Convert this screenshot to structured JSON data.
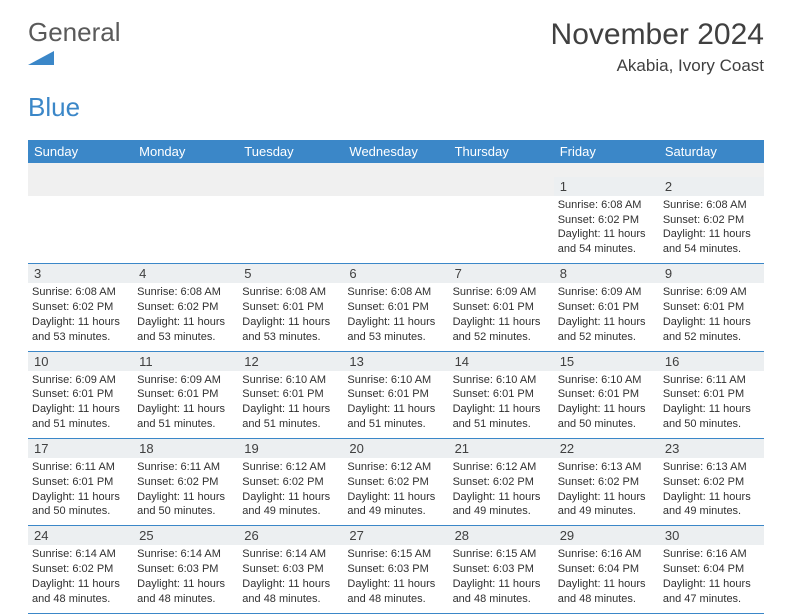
{
  "brand": {
    "word1": "General",
    "word2": "Blue",
    "accent_color": "#3b87c8"
  },
  "title": "November 2024",
  "location": "Akabia, Ivory Coast",
  "columns": [
    "Sunday",
    "Monday",
    "Tuesday",
    "Wednesday",
    "Thursday",
    "Friday",
    "Saturday"
  ],
  "colors": {
    "header_bg": "#3b87c8",
    "header_text": "#ffffff",
    "daynum_bg": "#eceff1",
    "border": "#3b87c8",
    "text": "#303030",
    "background": "#ffffff"
  },
  "weeks": [
    [
      {
        "n": "",
        "sr": "",
        "ss": "",
        "dl": ""
      },
      {
        "n": "",
        "sr": "",
        "ss": "",
        "dl": ""
      },
      {
        "n": "",
        "sr": "",
        "ss": "",
        "dl": ""
      },
      {
        "n": "",
        "sr": "",
        "ss": "",
        "dl": ""
      },
      {
        "n": "",
        "sr": "",
        "ss": "",
        "dl": ""
      },
      {
        "n": "1",
        "sr": "Sunrise: 6:08 AM",
        "ss": "Sunset: 6:02 PM",
        "dl": "Daylight: 11 hours and 54 minutes."
      },
      {
        "n": "2",
        "sr": "Sunrise: 6:08 AM",
        "ss": "Sunset: 6:02 PM",
        "dl": "Daylight: 11 hours and 54 minutes."
      }
    ],
    [
      {
        "n": "3",
        "sr": "Sunrise: 6:08 AM",
        "ss": "Sunset: 6:02 PM",
        "dl": "Daylight: 11 hours and 53 minutes."
      },
      {
        "n": "4",
        "sr": "Sunrise: 6:08 AM",
        "ss": "Sunset: 6:02 PM",
        "dl": "Daylight: 11 hours and 53 minutes."
      },
      {
        "n": "5",
        "sr": "Sunrise: 6:08 AM",
        "ss": "Sunset: 6:01 PM",
        "dl": "Daylight: 11 hours and 53 minutes."
      },
      {
        "n": "6",
        "sr": "Sunrise: 6:08 AM",
        "ss": "Sunset: 6:01 PM",
        "dl": "Daylight: 11 hours and 53 minutes."
      },
      {
        "n": "7",
        "sr": "Sunrise: 6:09 AM",
        "ss": "Sunset: 6:01 PM",
        "dl": "Daylight: 11 hours and 52 minutes."
      },
      {
        "n": "8",
        "sr": "Sunrise: 6:09 AM",
        "ss": "Sunset: 6:01 PM",
        "dl": "Daylight: 11 hours and 52 minutes."
      },
      {
        "n": "9",
        "sr": "Sunrise: 6:09 AM",
        "ss": "Sunset: 6:01 PM",
        "dl": "Daylight: 11 hours and 52 minutes."
      }
    ],
    [
      {
        "n": "10",
        "sr": "Sunrise: 6:09 AM",
        "ss": "Sunset: 6:01 PM",
        "dl": "Daylight: 11 hours and 51 minutes."
      },
      {
        "n": "11",
        "sr": "Sunrise: 6:09 AM",
        "ss": "Sunset: 6:01 PM",
        "dl": "Daylight: 11 hours and 51 minutes."
      },
      {
        "n": "12",
        "sr": "Sunrise: 6:10 AM",
        "ss": "Sunset: 6:01 PM",
        "dl": "Daylight: 11 hours and 51 minutes."
      },
      {
        "n": "13",
        "sr": "Sunrise: 6:10 AM",
        "ss": "Sunset: 6:01 PM",
        "dl": "Daylight: 11 hours and 51 minutes."
      },
      {
        "n": "14",
        "sr": "Sunrise: 6:10 AM",
        "ss": "Sunset: 6:01 PM",
        "dl": "Daylight: 11 hours and 51 minutes."
      },
      {
        "n": "15",
        "sr": "Sunrise: 6:10 AM",
        "ss": "Sunset: 6:01 PM",
        "dl": "Daylight: 11 hours and 50 minutes."
      },
      {
        "n": "16",
        "sr": "Sunrise: 6:11 AM",
        "ss": "Sunset: 6:01 PM",
        "dl": "Daylight: 11 hours and 50 minutes."
      }
    ],
    [
      {
        "n": "17",
        "sr": "Sunrise: 6:11 AM",
        "ss": "Sunset: 6:01 PM",
        "dl": "Daylight: 11 hours and 50 minutes."
      },
      {
        "n": "18",
        "sr": "Sunrise: 6:11 AM",
        "ss": "Sunset: 6:02 PM",
        "dl": "Daylight: 11 hours and 50 minutes."
      },
      {
        "n": "19",
        "sr": "Sunrise: 6:12 AM",
        "ss": "Sunset: 6:02 PM",
        "dl": "Daylight: 11 hours and 49 minutes."
      },
      {
        "n": "20",
        "sr": "Sunrise: 6:12 AM",
        "ss": "Sunset: 6:02 PM",
        "dl": "Daylight: 11 hours and 49 minutes."
      },
      {
        "n": "21",
        "sr": "Sunrise: 6:12 AM",
        "ss": "Sunset: 6:02 PM",
        "dl": "Daylight: 11 hours and 49 minutes."
      },
      {
        "n": "22",
        "sr": "Sunrise: 6:13 AM",
        "ss": "Sunset: 6:02 PM",
        "dl": "Daylight: 11 hours and 49 minutes."
      },
      {
        "n": "23",
        "sr": "Sunrise: 6:13 AM",
        "ss": "Sunset: 6:02 PM",
        "dl": "Daylight: 11 hours and 49 minutes."
      }
    ],
    [
      {
        "n": "24",
        "sr": "Sunrise: 6:14 AM",
        "ss": "Sunset: 6:02 PM",
        "dl": "Daylight: 11 hours and 48 minutes."
      },
      {
        "n": "25",
        "sr": "Sunrise: 6:14 AM",
        "ss": "Sunset: 6:03 PM",
        "dl": "Daylight: 11 hours and 48 minutes."
      },
      {
        "n": "26",
        "sr": "Sunrise: 6:14 AM",
        "ss": "Sunset: 6:03 PM",
        "dl": "Daylight: 11 hours and 48 minutes."
      },
      {
        "n": "27",
        "sr": "Sunrise: 6:15 AM",
        "ss": "Sunset: 6:03 PM",
        "dl": "Daylight: 11 hours and 48 minutes."
      },
      {
        "n": "28",
        "sr": "Sunrise: 6:15 AM",
        "ss": "Sunset: 6:03 PM",
        "dl": "Daylight: 11 hours and 48 minutes."
      },
      {
        "n": "29",
        "sr": "Sunrise: 6:16 AM",
        "ss": "Sunset: 6:04 PM",
        "dl": "Daylight: 11 hours and 48 minutes."
      },
      {
        "n": "30",
        "sr": "Sunrise: 6:16 AM",
        "ss": "Sunset: 6:04 PM",
        "dl": "Daylight: 11 hours and 47 minutes."
      }
    ]
  ]
}
